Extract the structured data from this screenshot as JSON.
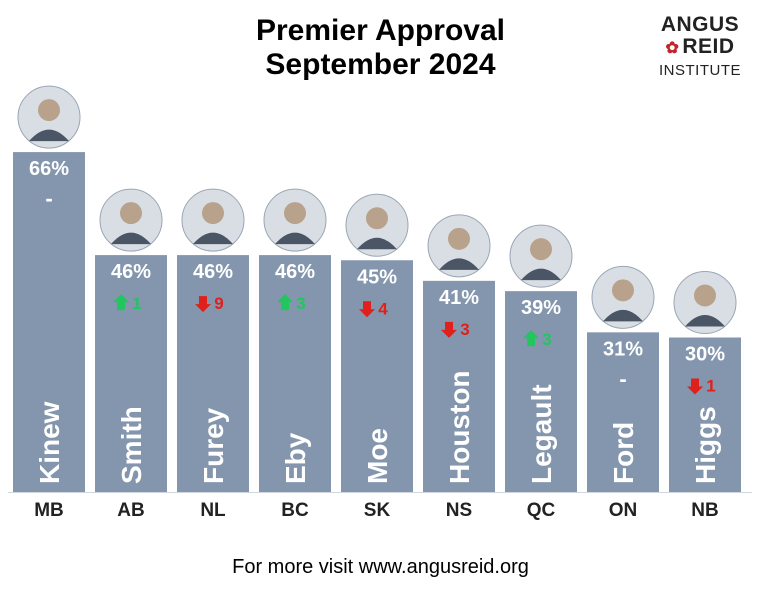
{
  "chart_data": {
    "type": "bar",
    "title_line1": "Premier Approval",
    "title_line2": "September 2024",
    "categories": [
      "MB",
      "AB",
      "NL",
      "BC",
      "SK",
      "NS",
      "QC",
      "ON",
      "NB"
    ],
    "names": [
      "Kinew",
      "Smith",
      "Furey",
      "Eby",
      "Moe",
      "Houston",
      "Legault",
      "Ford",
      "Higgs"
    ],
    "values": [
      66,
      46,
      46,
      46,
      45,
      41,
      39,
      31,
      30
    ],
    "value_labels": [
      "66%",
      "46%",
      "46%",
      "46%",
      "45%",
      "41%",
      "39%",
      "31%",
      "30%"
    ],
    "change_labels": [
      "-",
      "1",
      "9",
      "3",
      "4",
      "3",
      "3",
      "-",
      "1"
    ],
    "change_direction": [
      "none",
      "up",
      "down",
      "up",
      "down",
      "down",
      "up",
      "none",
      "down"
    ],
    "ylim": [
      0,
      70
    ],
    "colors": {
      "bar": "#8396ad",
      "up": "#22c55e",
      "down": "#e0201b",
      "label_text": "#ffffff",
      "axis_text": "#222222"
    }
  },
  "logo": {
    "line1": "ANGUS",
    "line2": "REID",
    "line3": "INSTITUTE",
    "leaf_icon": "maple-leaf-icon"
  },
  "footer": {
    "text": "For more visit www.angusreid.org"
  }
}
